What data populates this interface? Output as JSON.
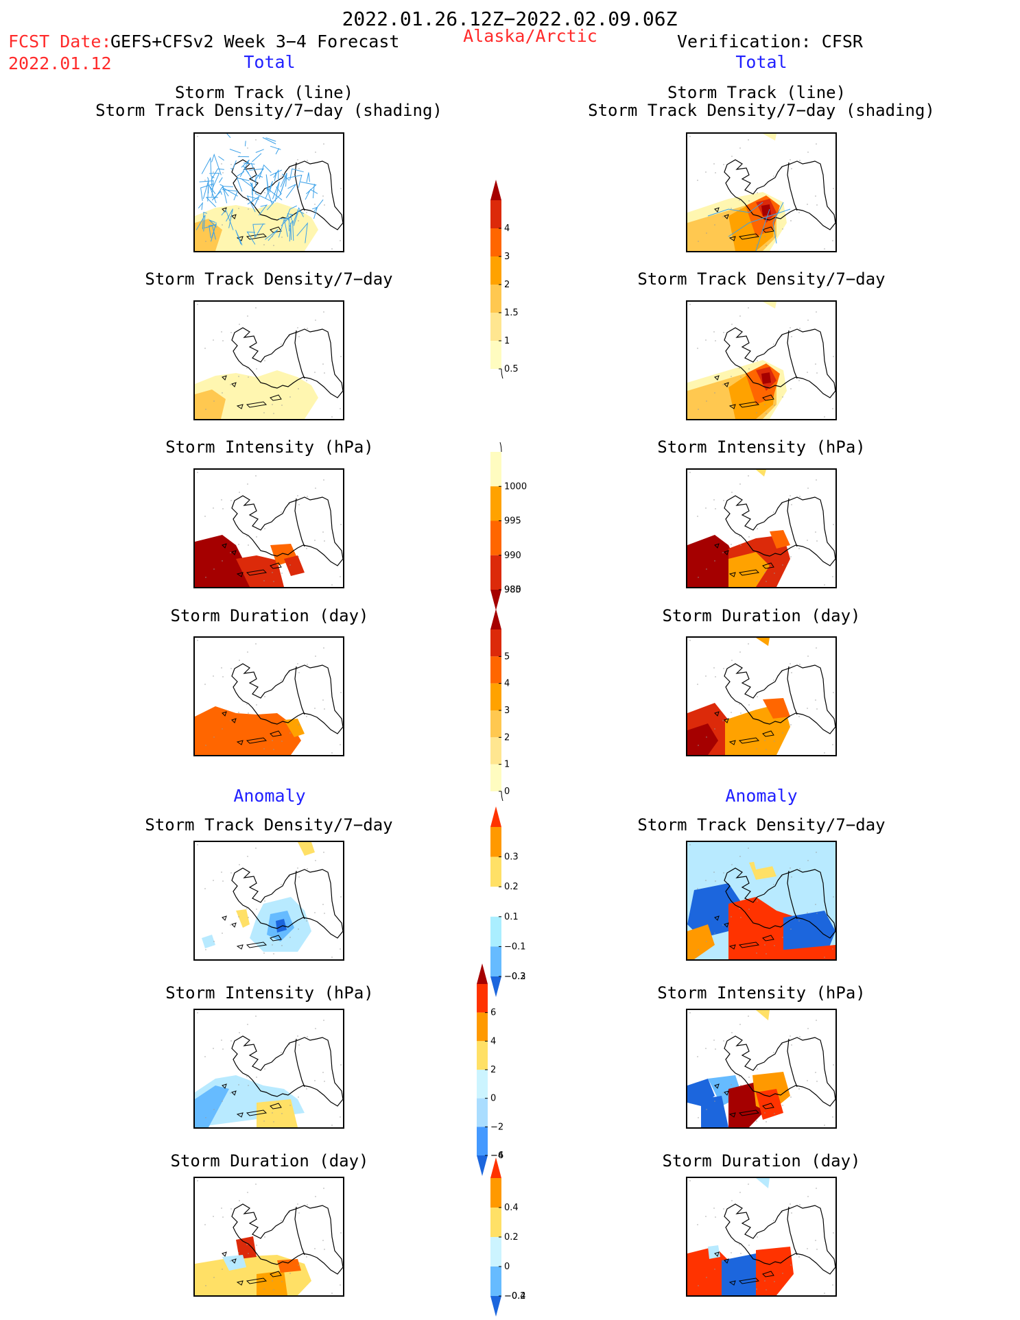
{
  "header": {
    "period": "2022.01.26.12Z−2022.02.09.06Z",
    "fcst_label": "FCST Date:",
    "fcst_model": "GEFS+CFSv2 Week 3−4 Forecast",
    "fcst_date": "2022.01.12",
    "region": "Alaska/Arctic",
    "verification": "Verification: CFSR"
  },
  "left_column": {
    "section_total": "Total",
    "section_anomaly": "Anomaly",
    "panels": [
      {
        "title1": "Storm Track (line)",
        "title2": "Storm Track Density/7−day (shading)"
      },
      {
        "title": "Storm Track Density/7−day"
      },
      {
        "title": "Storm Intensity (hPa)"
      },
      {
        "title": "Storm Duration (day)"
      },
      {
        "title": "Storm Track Density/7−day"
      },
      {
        "title": "Storm Intensity (hPa)"
      },
      {
        "title": "Storm Duration (day)"
      }
    ]
  },
  "right_column": {
    "section_total": "Total",
    "section_anomaly": "Anomaly",
    "panels": [
      {
        "title1": "Storm Track (line)",
        "title2": "Storm Track Density/7−day (shading)"
      },
      {
        "title": "Storm Track Density/7−day"
      },
      {
        "title": "Storm Intensity (hPa)"
      },
      {
        "title": "Storm Duration (day)"
      },
      {
        "title": "Storm Track Density/7−day"
      },
      {
        "title": "Storm Intensity (hPa)"
      },
      {
        "title": "Storm Duration (day)"
      }
    ]
  },
  "colorbars": {
    "density_total": {
      "ticks": [
        "4",
        "3",
        "2",
        "1.5",
        "1",
        "0.5"
      ],
      "colors": [
        "#a50000",
        "#dc2a0a",
        "#ff6600",
        "#ffa200",
        "#ffc850",
        "#ffe690",
        "#fffcc0"
      ]
    },
    "intensity_total": {
      "ticks": [
        "1000",
        "995",
        "990",
        "985",
        "980"
      ],
      "colors": [
        "#fffcc0",
        "#ffa200",
        "#ff6600",
        "#dc2a0a",
        "#a50000"
      ]
    },
    "duration_total": {
      "ticks": [
        "5",
        "4",
        "3",
        "2",
        "1",
        "0"
      ],
      "colors": [
        "#a50000",
        "#dc2a0a",
        "#ff6600",
        "#ffa200",
        "#ffc850",
        "#ffe690",
        "#fffcc0"
      ]
    },
    "density_anom": {
      "ticks": [
        "0.3",
        "0.2",
        "0.1",
        "−0.1",
        "−0.2",
        "−0.3"
      ],
      "colors": [
        "#ff3300",
        "#ff9900",
        "#ffe066",
        "#ffffff",
        "#aaeeff",
        "#66bbff",
        "#1c66dd"
      ]
    },
    "intensity_anom": {
      "ticks": [
        "6",
        "4",
        "2",
        "0",
        "−2",
        "−4",
        "−6"
      ],
      "colors": [
        "#a50000",
        "#ff3300",
        "#ff9900",
        "#ffe066",
        "#ccf4ff",
        "#aaddff",
        "#4499ff",
        "#1c66dd"
      ]
    },
    "duration_anom": {
      "ticks": [
        "0.4",
        "0.2",
        "0",
        "−0.2",
        "−0.4"
      ],
      "colors": [
        "#ff3300",
        "#ff9900",
        "#ffe066",
        "#ccf4ff",
        "#66bbff",
        "#1c66dd"
      ]
    }
  },
  "map_colors": {
    "coast": "#000000",
    "track": "#3aa0e8"
  }
}
